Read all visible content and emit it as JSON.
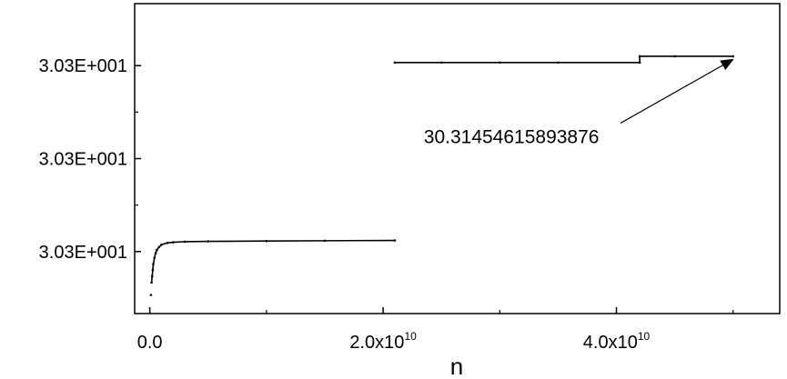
{
  "chart_data": {
    "type": "scatter",
    "title": "",
    "xlabel": "n",
    "ylabel": "",
    "xlim": [
      -1300000000.0,
      54000000000.0
    ],
    "ylim": [
      0,
      100
    ],
    "x_ticks": [
      {
        "value": 0,
        "label": "0.0",
        "exp": ""
      },
      {
        "value": 20000000000.0,
        "label": "2.0x10",
        "exp": "10"
      },
      {
        "value": 40000000000.0,
        "label": "4.0x10",
        "exp": "10"
      }
    ],
    "y_ticks": [
      {
        "value": 80,
        "label": "3.03E+001"
      },
      {
        "value": 50,
        "label": "3.03E+001"
      },
      {
        "value": 20,
        "label": "3.03E+001"
      }
    ],
    "series": [
      {
        "points": [
          [
            100000000.0,
            6
          ],
          [
            150000000.0,
            10
          ],
          [
            200000000.0,
            12
          ],
          [
            250000000.0,
            14
          ],
          [
            300000000.0,
            16
          ],
          [
            400000000.0,
            18
          ],
          [
            500000000.0,
            19.5
          ],
          [
            600000000.0,
            20.5
          ],
          [
            800000000.0,
            21.5
          ],
          [
            1000000000.0,
            22.2
          ],
          [
            1500000000.0,
            22.8
          ],
          [
            2000000000.0,
            23
          ],
          [
            3000000000.0,
            23.2
          ],
          [
            5000000000.0,
            23.3
          ],
          [
            10000000000.0,
            23.4
          ],
          [
            15000000000.0,
            23.5
          ],
          [
            21000000000.0,
            23.6
          ],
          [
            21000000000.0,
            81
          ],
          [
            25000000000.0,
            81
          ],
          [
            30000000000.0,
            81
          ],
          [
            35000000000.0,
            81
          ],
          [
            42000000000.0,
            81
          ],
          [
            42000000000.0,
            83
          ],
          [
            45000000000.0,
            83
          ],
          [
            50000000000.0,
            83
          ]
        ]
      }
    ],
    "annotation": {
      "text": "30.31454615893876",
      "x": 31000000000.0,
      "y": 55,
      "arrow_to": [
        50000000000.0,
        82
      ]
    },
    "grid": false
  }
}
